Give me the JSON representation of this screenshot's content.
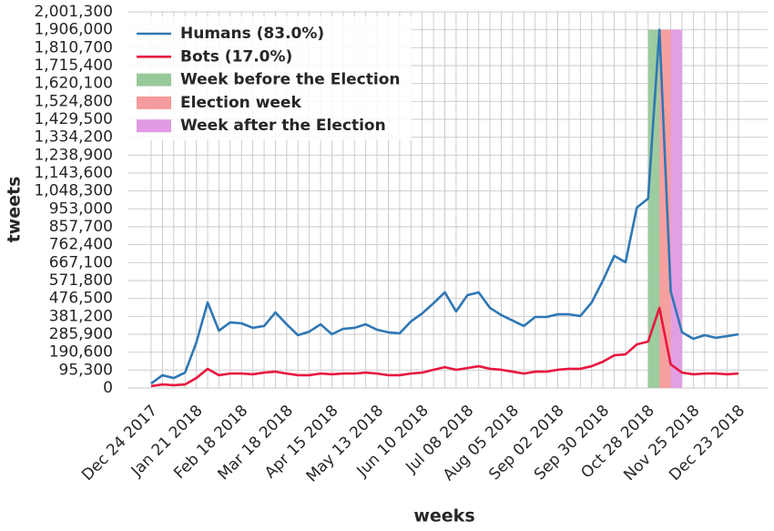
{
  "chart_data": {
    "type": "line",
    "xlabel": "weeks",
    "ylabel": "tweets",
    "categories": [
      "Dec 24 2017",
      null,
      null,
      null,
      "Jan 21 2018",
      null,
      null,
      null,
      "Feb 18 2018",
      null,
      null,
      null,
      "Mar 18 2018",
      null,
      null,
      null,
      "Apr 15 2018",
      null,
      null,
      null,
      "May 13 2018",
      null,
      null,
      null,
      "Jun 10 2018",
      null,
      null,
      null,
      "Jul 08 2018",
      null,
      null,
      null,
      "Aug 05 2018",
      null,
      null,
      null,
      "Sep 02 2018",
      null,
      null,
      null,
      "Sep 30 2018",
      null,
      null,
      null,
      "Oct 28 2018",
      null,
      null,
      null,
      "Nov 25 2018",
      null,
      null,
      null,
      "Dec 23 2018"
    ],
    "series": [
      {
        "name": "Humans (83.0%)",
        "color": "#2f77b4",
        "values": [
          24000,
          68000,
          53000,
          82000,
          242000,
          455000,
          305000,
          349000,
          344000,
          320000,
          330000,
          402000,
          339000,
          281000,
          300000,
          339000,
          286000,
          315000,
          320000,
          339000,
          310000,
          296000,
          291000,
          354000,
          397000,
          451000,
          509000,
          407000,
          494000,
          509000,
          426000,
          388000,
          359000,
          330000,
          378000,
          378000,
          392000,
          392000,
          383000,
          455000,
          572000,
          703000,
          669000,
          960000,
          1008000,
          1906000,
          514000,
          296000,
          262000,
          281000,
          267000,
          276000,
          286000
        ]
      },
      {
        "name": "Bots (17.0%)",
        "color": "#e8173f",
        "values": [
          10000,
          19000,
          15000,
          19000,
          53000,
          102000,
          68000,
          77000,
          77000,
          73000,
          82000,
          87000,
          77000,
          68000,
          68000,
          77000,
          73000,
          77000,
          77000,
          82000,
          77000,
          68000,
          68000,
          77000,
          82000,
          97000,
          111000,
          97000,
          106000,
          116000,
          102000,
          97000,
          87000,
          77000,
          87000,
          87000,
          97000,
          102000,
          102000,
          116000,
          140000,
          174000,
          179000,
          232000,
          247000,
          426000,
          126000,
          82000,
          73000,
          77000,
          77000,
          73000,
          77000
        ]
      }
    ],
    "spans": [
      {
        "name": "Week before the Election",
        "color": "#98c99a",
        "from": 44,
        "to": 45,
        "top": 1906000
      },
      {
        "name": "Election week",
        "color": "#f59b9b",
        "from": 45,
        "to": 46,
        "top": 1906000
      },
      {
        "name": "Week after the Election",
        "color": "#e19ae3",
        "from": 46,
        "to": 47,
        "top": 1906000
      }
    ],
    "ylim": [
      0,
      2001300
    ],
    "yticks": [
      0,
      {
        "value": 95300,
        "label": "95,300"
      },
      {
        "value": 190600,
        "label": "190,600"
      },
      {
        "value": 285900,
        "label": "285,900"
      },
      {
        "value": 381200,
        "label": "381,200"
      },
      {
        "value": 476500,
        "label": "476,500"
      },
      {
        "value": 571800,
        "label": "571,800"
      },
      {
        "value": 667100,
        "label": "667,100"
      },
      {
        "value": 762400,
        "label": "762,400"
      },
      {
        "value": 857700,
        "label": "857,700"
      },
      {
        "value": 953000,
        "label": "953,000"
      },
      {
        "value": 1048300,
        "label": "1,048,300"
      },
      {
        "value": 1143600,
        "label": "1,143,600"
      },
      {
        "value": 1238900,
        "label": "1,238,900"
      },
      {
        "value": 1334200,
        "label": "1,334,200"
      },
      {
        "value": 1429500,
        "label": "1,429,500"
      },
      {
        "value": 1524800,
        "label": "1,524,800"
      },
      {
        "value": 1620100,
        "label": "1,620,100"
      },
      {
        "value": 1715400,
        "label": "1,715,400"
      },
      {
        "value": 1810700,
        "label": "1,810,700"
      },
      {
        "value": 1906000,
        "label": "1,906,000"
      },
      {
        "value": 2001300,
        "label": "2,001,300"
      }
    ],
    "grid": true,
    "legend": "upper left"
  }
}
